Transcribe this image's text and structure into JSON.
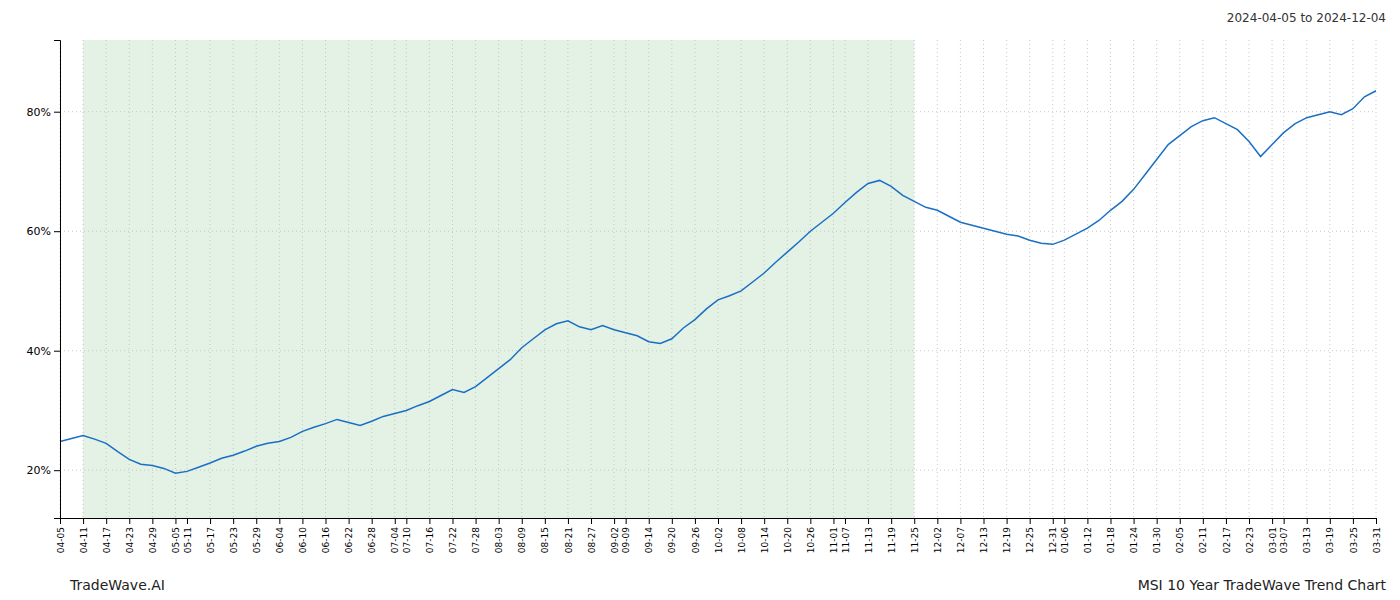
{
  "chart_data": {
    "type": "line",
    "title": "2024-04-05 to 2024-12-04",
    "annotations": [
      "TradeWave.AI",
      "MSI 10 Year TradeWave Trend Chart"
    ],
    "categories": [
      "04-05",
      null,
      "04-11",
      null,
      "04-17",
      null,
      "04-23",
      null,
      "04-29",
      null,
      "05-05",
      "05-11",
      null,
      "05-17",
      null,
      "05-23",
      null,
      "05-29",
      null,
      "06-04",
      null,
      "06-10",
      null,
      "06-16",
      null,
      "06-22",
      null,
      "06-28",
      null,
      "07-04",
      "07-10",
      null,
      "07-16",
      null,
      "07-22",
      null,
      "07-28",
      null,
      "08-03",
      null,
      "08-09",
      null,
      "08-15",
      null,
      "08-21",
      null,
      "08-27",
      null,
      "09-02",
      "09-09",
      null,
      "09-14",
      null,
      "09-20",
      null,
      "09-26",
      null,
      "10-02",
      null,
      "10-08",
      null,
      "10-14",
      null,
      "10-20",
      null,
      "10-26",
      null,
      "11-01",
      "11-07",
      null,
      "11-13",
      null,
      "11-19",
      null,
      "11-25",
      null,
      "12-02",
      null,
      "12-07",
      null,
      "12-13",
      null,
      "12-19",
      null,
      "12-25",
      null,
      "12-31",
      "01-06",
      null,
      "01-12",
      null,
      "01-18",
      null,
      "01-24",
      null,
      "01-30",
      null,
      "02-05",
      null,
      "02-11",
      null,
      "02-17",
      null,
      "02-23",
      null,
      "03-01",
      "03-07",
      null,
      "03-13",
      null,
      "03-19",
      null,
      "03-25",
      null,
      "03-31"
    ],
    "values": [
      24.8,
      25.3,
      25.8,
      25.2,
      24.5,
      23.1,
      21.8,
      21.0,
      20.8,
      20.3,
      19.5,
      19.8,
      20.5,
      21.2,
      22.0,
      22.5,
      23.2,
      24.0,
      24.5,
      24.8,
      25.5,
      26.5,
      27.2,
      27.8,
      28.5,
      28.0,
      27.5,
      28.2,
      29.0,
      29.5,
      30.0,
      30.8,
      31.5,
      32.5,
      33.5,
      33.0,
      34.0,
      35.5,
      37.0,
      38.5,
      40.5,
      42.0,
      43.5,
      44.5,
      45.0,
      44.0,
      43.5,
      44.2,
      43.5,
      43.0,
      42.5,
      41.5,
      41.2,
      42.0,
      43.8,
      45.2,
      47.0,
      48.5,
      49.2,
      50.0,
      51.5,
      53.0,
      54.8,
      56.5,
      58.2,
      60.0,
      61.5,
      63.0,
      64.8,
      66.5,
      68.0,
      68.5,
      67.5,
      66.0,
      65.0,
      64.0,
      63.5,
      62.5,
      61.5,
      61.0,
      60.5,
      60.0,
      59.5,
      59.2,
      58.5,
      58.0,
      57.8,
      58.5,
      59.5,
      60.5,
      61.8,
      63.5,
      65.0,
      67.0,
      69.5,
      72.0,
      74.5,
      76.0,
      77.5,
      78.5,
      79.0,
      78.0,
      77.0,
      75.0,
      72.5,
      74.5,
      76.5,
      78.0,
      79.0,
      79.5,
      80.0,
      79.5,
      80.5,
      82.5,
      83.5
    ],
    "color": "#1a6fc4",
    "shade": {
      "from": "04-11",
      "to": "11-25",
      "color": "#c8e6c9"
    },
    "ylim": [
      12,
      92
    ],
    "yticks": [
      {
        "value": 20,
        "label": "20%"
      },
      {
        "value": 40,
        "label": "40%"
      },
      {
        "value": 60,
        "label": "60%"
      },
      {
        "value": 80,
        "label": "80%"
      }
    ],
    "grid": true
  }
}
